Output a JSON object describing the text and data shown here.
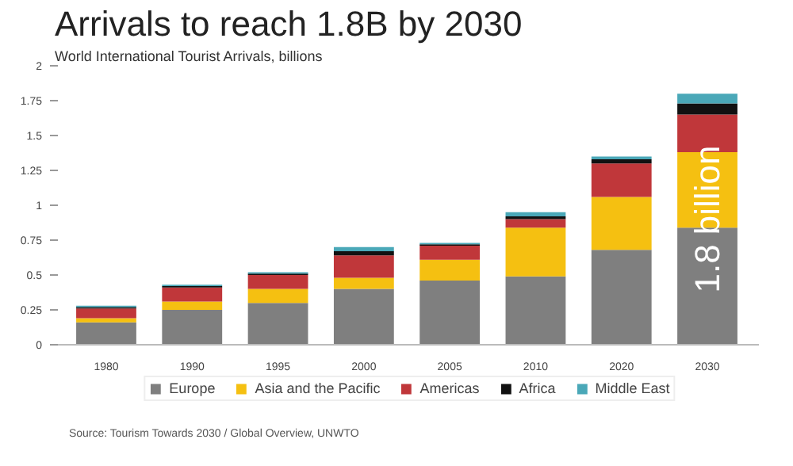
{
  "chart_data": {
    "type": "bar",
    "title": "Arrivals to reach 1.8B by 2030",
    "subtitle": "World International Tourist Arrivals, billions",
    "categories": [
      "1980",
      "1990",
      "1995",
      "2000",
      "2005",
      "2010",
      "2020",
      "2030"
    ],
    "stacked": true,
    "series": [
      {
        "name": "Europe",
        "color": "#7f7f7f",
        "values": [
          0.16,
          0.25,
          0.3,
          0.4,
          0.46,
          0.49,
          0.68,
          0.84
        ]
      },
      {
        "name": "Asia and the Pacific",
        "color": "#f5c011",
        "values": [
          0.03,
          0.06,
          0.1,
          0.08,
          0.15,
          0.35,
          0.38,
          0.54
        ]
      },
      {
        "name": "Americas",
        "color": "#c0373a",
        "values": [
          0.07,
          0.1,
          0.1,
          0.16,
          0.1,
          0.06,
          0.24,
          0.27
        ]
      },
      {
        "name": "Africa",
        "color": "#111111",
        "values": [
          0.01,
          0.01,
          0.01,
          0.03,
          0.01,
          0.02,
          0.03,
          0.08
        ]
      },
      {
        "name": "Middle East",
        "color": "#4aa8b8",
        "values": [
          0.01,
          0.01,
          0.01,
          0.03,
          0.01,
          0.03,
          0.02,
          0.07
        ]
      }
    ],
    "ylim": [
      0,
      2
    ],
    "yticks": [
      0,
      0.25,
      0.5,
      0.75,
      1,
      1.25,
      1.5,
      1.75,
      2
    ],
    "grid": false,
    "legend": "bottom",
    "annotations": [
      "1.8 billion",
      "Source: Tourism Towards 2030 / Global Overview, UNWTO"
    ]
  }
}
